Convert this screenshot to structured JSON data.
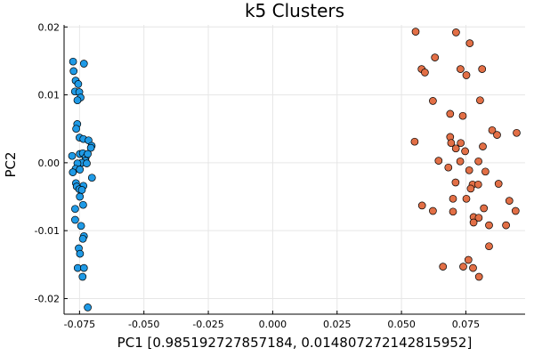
{
  "chart_data": {
    "type": "scatter",
    "title": "k5 Clusters",
    "xlabel": "PC1 [0.985192727857184, 0.014807272142815952]",
    "ylabel": "PC2",
    "xlim": [
      -0.081,
      0.098
    ],
    "ylim": [
      -0.0223,
      0.0203
    ],
    "xticks": [
      -0.075,
      -0.05,
      -0.025,
      0.0,
      0.025,
      0.05,
      0.075
    ],
    "xtick_labels": [
      "-0.075",
      "-0.050",
      "-0.025",
      "0.000",
      "0.025",
      "0.050",
      "0.075"
    ],
    "yticks": [
      -0.02,
      -0.01,
      0.0,
      0.01,
      0.02
    ],
    "ytick_labels": [
      "-0.02",
      "-0.01",
      "0.00",
      "0.01",
      "0.02"
    ],
    "grid": true,
    "legend": "none",
    "series": [
      {
        "color": "#1f9ae6",
        "points": [
          [
            -0.0775,
            0.0149
          ],
          [
            -0.0733,
            0.0146
          ],
          [
            -0.0773,
            0.0135
          ],
          [
            -0.0765,
            0.0121
          ],
          [
            -0.0755,
            0.0116
          ],
          [
            -0.0768,
            0.0105
          ],
          [
            -0.0751,
            0.0104
          ],
          [
            -0.0746,
            0.0096
          ],
          [
            -0.0758,
            0.0092
          ],
          [
            -0.0759,
            0.0057
          ],
          [
            -0.0763,
            0.005
          ],
          [
            -0.075,
            0.0037
          ],
          [
            -0.0735,
            0.0035
          ],
          [
            -0.0715,
            0.0033
          ],
          [
            -0.0703,
            0.0025
          ],
          [
            -0.0706,
            0.0022
          ],
          [
            -0.0749,
            0.0013
          ],
          [
            -0.0737,
            0.0014
          ],
          [
            -0.0726,
            0.0008
          ],
          [
            -0.0779,
            0.001
          ],
          [
            -0.0718,
            0.0013
          ],
          [
            -0.0727,
            0.0003
          ],
          [
            -0.0741,
            0.0
          ],
          [
            -0.0758,
            -0.0001
          ],
          [
            -0.0722,
            -0.0001
          ],
          [
            -0.0765,
            -0.0009
          ],
          [
            -0.0749,
            -0.001
          ],
          [
            -0.0776,
            -0.0014
          ],
          [
            -0.0702,
            -0.0022
          ],
          [
            -0.0764,
            -0.003
          ],
          [
            -0.0735,
            -0.0034
          ],
          [
            -0.0761,
            -0.0035
          ],
          [
            -0.0751,
            -0.0039
          ],
          [
            -0.0741,
            -0.004
          ],
          [
            -0.0749,
            -0.005
          ],
          [
            -0.0736,
            -0.0062
          ],
          [
            -0.0767,
            -0.0068
          ],
          [
            -0.0767,
            -0.0084
          ],
          [
            -0.0744,
            -0.0093
          ],
          [
            -0.0733,
            -0.0108
          ],
          [
            -0.0737,
            -0.0112
          ],
          [
            -0.0753,
            -0.0126
          ],
          [
            -0.0748,
            -0.0134
          ],
          [
            -0.0757,
            -0.0155
          ],
          [
            -0.0733,
            -0.0155
          ],
          [
            -0.0738,
            -0.0168
          ],
          [
            -0.0718,
            -0.0213
          ]
        ]
      },
      {
        "color": "#e26f46",
        "points": [
          [
            0.0555,
            0.0193
          ],
          [
            0.0712,
            0.0192
          ],
          [
            0.0765,
            0.0176
          ],
          [
            0.063,
            0.0155
          ],
          [
            0.0578,
            0.0138
          ],
          [
            0.0591,
            0.0133
          ],
          [
            0.0729,
            0.0138
          ],
          [
            0.0813,
            0.0138
          ],
          [
            0.0752,
            0.0129
          ],
          [
            0.0622,
            0.0091
          ],
          [
            0.0805,
            0.0092
          ],
          [
            0.0689,
            0.0072
          ],
          [
            0.0738,
            0.0069
          ],
          [
            0.0852,
            0.0048
          ],
          [
            0.0871,
            0.0041
          ],
          [
            0.0947,
            0.0044
          ],
          [
            0.0551,
            0.0031
          ],
          [
            0.0689,
            0.0038
          ],
          [
            0.0693,
            0.0029
          ],
          [
            0.073,
            0.0029
          ],
          [
            0.0711,
            0.0021
          ],
          [
            0.0747,
            0.0017
          ],
          [
            0.0816,
            0.0024
          ],
          [
            0.0644,
            0.0003
          ],
          [
            0.0728,
            0.0002
          ],
          [
            0.0799,
            0.0002
          ],
          [
            0.0682,
            -0.0007
          ],
          [
            0.0763,
            -0.0011
          ],
          [
            0.0826,
            -0.0013
          ],
          [
            0.071,
            -0.0029
          ],
          [
            0.0776,
            -0.0032
          ],
          [
            0.0798,
            -0.0032
          ],
          [
            0.0769,
            -0.0038
          ],
          [
            0.0877,
            -0.0031
          ],
          [
            0.07,
            -0.0053
          ],
          [
            0.0752,
            -0.0053
          ],
          [
            0.0919,
            -0.0056
          ],
          [
            0.058,
            -0.0063
          ],
          [
            0.0622,
            -0.0071
          ],
          [
            0.07,
            -0.0072
          ],
          [
            0.082,
            -0.0067
          ],
          [
            0.0943,
            -0.0071
          ],
          [
            0.078,
            -0.008
          ],
          [
            0.08,
            -0.0081
          ],
          [
            0.078,
            -0.0088
          ],
          [
            0.084,
            -0.0092
          ],
          [
            0.0906,
            -0.0092
          ],
          [
            0.084,
            -0.0123
          ],
          [
            0.076,
            -0.0143
          ],
          [
            0.0661,
            -0.0153
          ],
          [
            0.074,
            -0.0153
          ],
          [
            0.0778,
            -0.0155
          ],
          [
            0.0801,
            -0.0168
          ]
        ]
      }
    ]
  }
}
